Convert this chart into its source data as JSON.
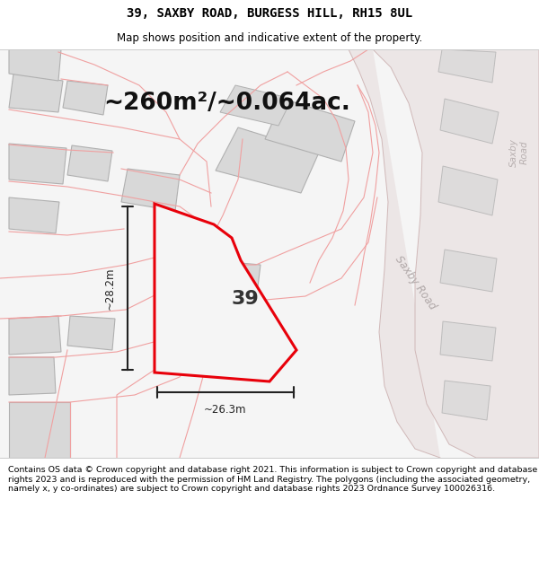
{
  "title": "39, SAXBY ROAD, BURGESS HILL, RH15 8UL",
  "subtitle": "Map shows position and indicative extent of the property.",
  "area_text": "~260m²/~0.064ac.",
  "label_39": "39",
  "dim_vertical": "~28.2m",
  "dim_horizontal": "~26.3m",
  "road_label_diag": "Saxby Road",
  "road_label_vert": "Saxby\nRoad",
  "footer": "Contains OS data © Crown copyright and database right 2021. This information is subject to Crown copyright and database rights 2023 and is reproduced with the permission of HM Land Registry. The polygons (including the associated geometry, namely x, y co-ordinates) are subject to Crown copyright and database rights 2023 Ordnance Survey 100026316.",
  "map_bg": "#f5f5f5",
  "plot_color": "#e8000a",
  "plot_fill": "#f5f5f5",
  "building_fill": "#d8d8d8",
  "building_edge": "#b0b0b0",
  "road_fill": "#ece8e8",
  "boundary_color": "#f0a0a0",
  "boundary_lw": 0.8,
  "title_fontsize": 10,
  "subtitle_fontsize": 8.5,
  "area_fontsize": 19,
  "label_fontsize": 16,
  "dim_fontsize": 8.5,
  "footer_fontsize": 6.8,
  "road_label_color": "#b0a8a8",
  "road_label_fontsize": 8.5,
  "dim_color": "#222222",
  "dim_lw": 1.5
}
